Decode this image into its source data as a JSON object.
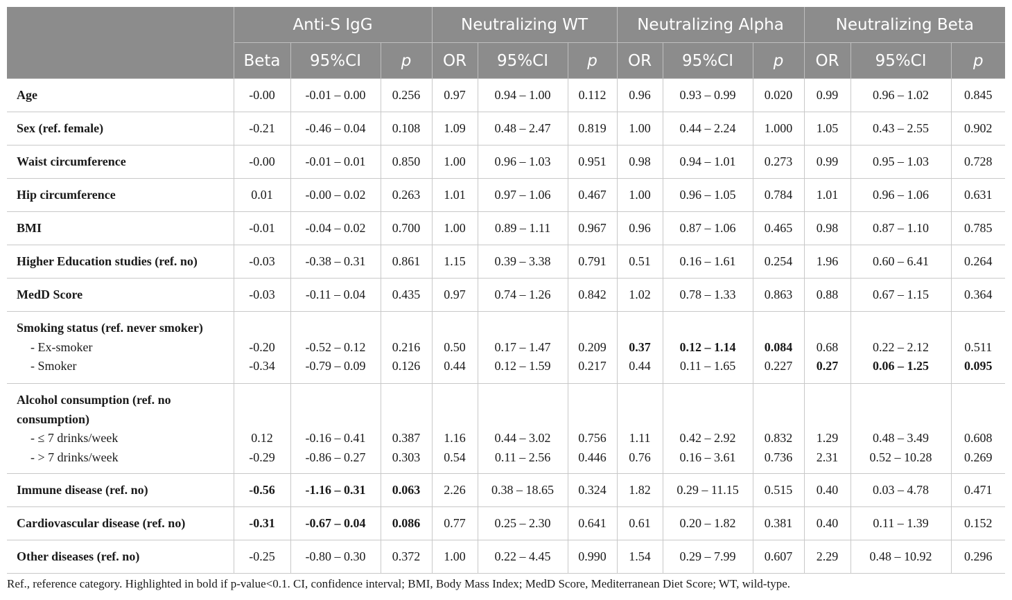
{
  "header": {
    "groups": [
      "Anti-S IgG",
      "Neutralizing WT",
      "Neutralizing Alpha",
      "Neutralizing Beta"
    ],
    "subcols": [
      "Beta",
      "95%CI",
      "p",
      "OR",
      "95%CI",
      "p",
      "OR",
      "95%CI",
      "p",
      "OR",
      "95%CI",
      "p"
    ]
  },
  "rows": [
    {
      "label": "Age",
      "values": [
        "-0.00",
        "-0.01 – 0.00",
        "0.256",
        "0.97",
        "0.94 – 1.00",
        "0.112",
        "0.96",
        "0.93 – 0.99",
        "0.020",
        "0.99",
        "0.96 – 1.02",
        "0.845"
      ]
    },
    {
      "label": "Sex (ref. female)",
      "values": [
        "-0.21",
        "-0.46 – 0.04",
        "0.108",
        "1.09",
        "0.48 – 2.47",
        "0.819",
        "1.00",
        "0.44 – 2.24",
        "1.000",
        "1.05",
        "0.43 – 2.55",
        "0.902"
      ]
    },
    {
      "label": "Waist circumference",
      "values": [
        "-0.00",
        "-0.01 – 0.01",
        "0.850",
        "1.00",
        "0.96 – 1.03",
        "0.951",
        "0.98",
        "0.94 – 1.01",
        "0.273",
        "0.99",
        "0.95 – 1.03",
        "0.728"
      ]
    },
    {
      "label": "Hip circumference",
      "values": [
        "0.01",
        "-0.00 – 0.02",
        "0.263",
        "1.01",
        "0.97 – 1.06",
        "0.467",
        "1.00",
        "0.96 – 1.05",
        "0.784",
        "1.01",
        "0.96 – 1.06",
        "0.631"
      ]
    },
    {
      "label": "BMI",
      "values": [
        "-0.01",
        "-0.04 – 0.02",
        "0.700",
        "1.00",
        "0.89 – 1.11",
        "0.967",
        "0.96",
        "0.87 – 1.06",
        "0.465",
        "0.98",
        "0.87 – 1.10",
        "0.785"
      ]
    },
    {
      "label": "Higher Education studies (ref. no)",
      "values": [
        "-0.03",
        "-0.38 – 0.31",
        "0.861",
        "1.15",
        "0.39 – 3.38",
        "0.791",
        "0.51",
        "0.16 – 1.61",
        "0.254",
        "1.96",
        "0.60 – 6.41",
        "0.264"
      ]
    },
    {
      "label": "MedD Score",
      "values": [
        "-0.03",
        "-0.11 – 0.04",
        "0.435",
        "0.97",
        "0.74 – 1.26",
        "0.842",
        "1.02",
        "0.78 – 1.33",
        "0.863",
        "0.88",
        "0.67 – 1.15",
        "0.364"
      ]
    }
  ],
  "smoking": {
    "label": "Smoking status (ref. never smoker)",
    "sub": [
      {
        "label": "- Ex-smoker",
        "values": [
          "-0.20",
          "-0.52 – 0.12",
          "0.216",
          "0.50",
          "0.17 – 1.47",
          "0.209",
          "0.37",
          "0.12 – 1.14",
          "0.084",
          "0.68",
          "0.22 – 2.12",
          "0.511"
        ]
      },
      {
        "label": "- Smoker",
        "values": [
          "-0.34",
          "-0.79 – 0.09",
          "0.126",
          "0.44",
          "0.12 – 1.59",
          "0.217",
          "0.44",
          "0.11 – 1.65",
          "0.227",
          "0.27",
          "0.06 – 1.25",
          "0.095"
        ]
      }
    ]
  },
  "alcohol": {
    "label_line1": "Alcohol consumption (ref. no",
    "label_line2": "consumption)",
    "sub": [
      {
        "label": "- ≤ 7 drinks/week",
        "values": [
          "0.12",
          "-0.16 – 0.41",
          "0.387",
          "1.16",
          "0.44 – 3.02",
          "0.756",
          "1.11",
          "0.42 – 2.92",
          "0.832",
          "1.29",
          "0.48 – 3.49",
          "0.608"
        ]
      },
      {
        "label": "- > 7 drinks/week",
        "values": [
          "-0.29",
          "-0.86 – 0.27",
          "0.303",
          "0.54",
          "0.11 – 2.56",
          "0.446",
          "0.76",
          "0.16 – 3.61",
          "0.736",
          "2.31",
          "0.52 – 10.28",
          "0.269"
        ]
      }
    ]
  },
  "rows2": [
    {
      "label": "Immune disease (ref. no)",
      "values": [
        "-0.56",
        "-1.16 – 0.31",
        "0.063",
        "2.26",
        "0.38 – 18.65",
        "0.324",
        "1.82",
        "0.29 – 11.15",
        "0.515",
        "0.40",
        "0.03 – 4.78",
        "0.471"
      ]
    },
    {
      "label": "Cardiovascular disease (ref. no)",
      "values": [
        "-0.31",
        "-0.67 – 0.04",
        "0.086",
        "0.77",
        "0.25 – 2.30",
        "0.641",
        "0.61",
        "0.20 – 1.82",
        "0.381",
        "0.40",
        "0.11 – 1.39",
        "0.152"
      ]
    },
    {
      "label": "Other diseases (ref. no)",
      "values": [
        "-0.25",
        "-0.80 – 0.30",
        "0.372",
        "1.00",
        "0.22 – 4.45",
        "0.990",
        "1.54",
        "0.29 – 7.99",
        "0.607",
        "2.29",
        "0.48 – 10.92",
        "0.296"
      ]
    }
  ],
  "footnote": "Ref., reference category. Highlighted in bold if p-value<0.1. CI, confidence interval; BMI, Body Mass Index; MedD Score, Mediterranean Diet Score; WT, wild-type."
}
